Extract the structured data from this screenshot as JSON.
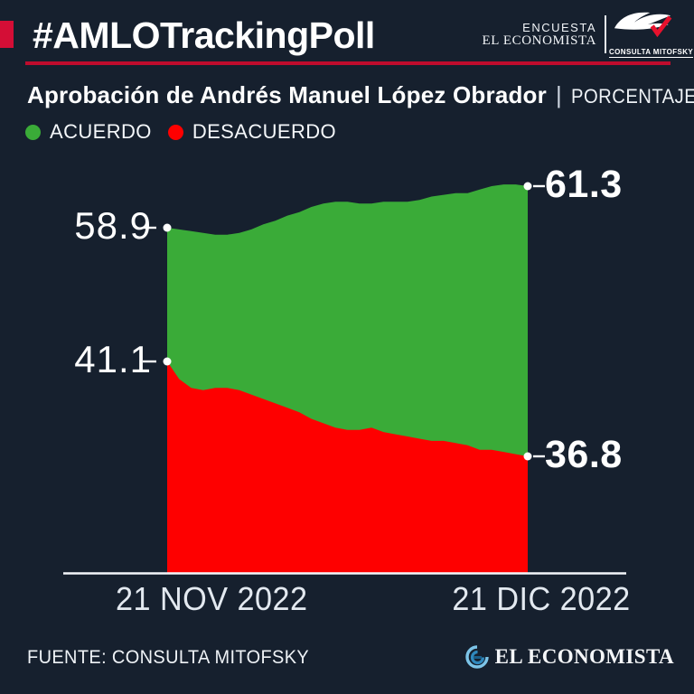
{
  "header": {
    "hashtag_title": "#AMLOTrackingPoll",
    "brand": {
      "encuesta": "ENCUESTA",
      "el_economista": "EL ECONOMISTA",
      "consulta_mitofsky": "CONSULTA MITOFSKY"
    }
  },
  "subtitle": {
    "title": "Aprobación de Andrés Manuel López Obrador",
    "separator": "|",
    "unit": "PORCENTAJE"
  },
  "chart_data": {
    "type": "area",
    "title": "Aprobación de Andrés Manuel López Obrador",
    "unit": "PORCENTAJE",
    "x_tick_labels": [
      "21 NOV 2022",
      "21 DIC 2022"
    ],
    "grid": false,
    "legend_position": "top-left",
    "values_estimated_between_endpoints": true,
    "series": [
      {
        "name": "ACUERDO",
        "color": "#3aab38",
        "start_label": "58.9",
        "end_label": "61.3",
        "values": [
          58.9,
          58.8,
          58.7,
          58.6,
          58.5,
          58.5,
          58.6,
          58.8,
          59.1,
          59.3,
          59.6,
          59.8,
          60.1,
          60.3,
          60.4,
          60.4,
          60.3,
          60.3,
          60.4,
          60.4,
          60.4,
          60.5,
          60.7,
          60.8,
          60.9,
          60.9,
          61.1,
          61.3,
          61.4,
          61.4,
          61.3
        ]
      },
      {
        "name": "DESACUERDO",
        "color": "#fe0000",
        "start_label": "41.1",
        "end_label": "36.8",
        "values": [
          41.1,
          40.3,
          39.9,
          39.8,
          39.9,
          39.9,
          39.8,
          39.6,
          39.4,
          39.2,
          39.0,
          38.8,
          38.5,
          38.3,
          38.1,
          38.0,
          38.0,
          38.1,
          37.9,
          37.8,
          37.7,
          37.6,
          37.5,
          37.5,
          37.4,
          37.3,
          37.1,
          37.1,
          37.0,
          36.9,
          36.8
        ]
      }
    ]
  },
  "footer": {
    "source": "FUENTE: CONSULTA MITOFSKY",
    "brand": "EL ECONOMISTA"
  },
  "colors": {
    "background": "#16202e",
    "accent_red": "#d40e36",
    "underline_red": "#bf0c2d",
    "green": "#3aab38",
    "red": "#fe0000",
    "white": "#ffffff"
  }
}
